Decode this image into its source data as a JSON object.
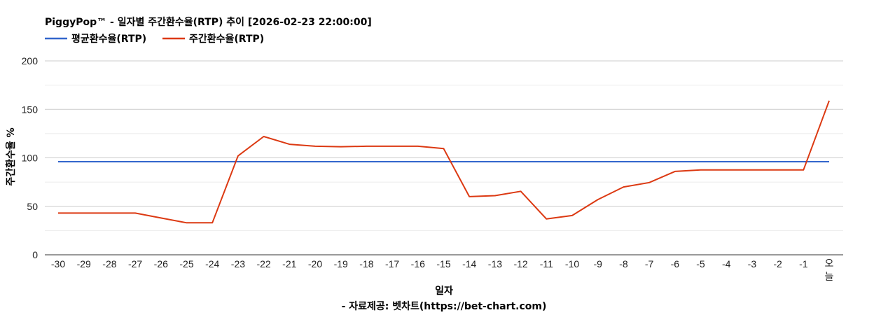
{
  "chart_data": {
    "type": "line",
    "title": "PiggyPop™ - 일자별 주간환수율(RTP) 추이 [2026-02-23 22:00:00]",
    "xlabel": "일자",
    "ylabel": "주간환수율 %",
    "source": "- 자료제공: 벳차트(https://bet-chart.com)",
    "categories": [
      "-30",
      "-29",
      "-28",
      "-27",
      "-26",
      "-25",
      "-24",
      "-23",
      "-22",
      "-21",
      "-20",
      "-19",
      "-18",
      "-17",
      "-16",
      "-15",
      "-14",
      "-13",
      "-12",
      "-11",
      "-10",
      "-9",
      "-8",
      "-7",
      "-6",
      "-5",
      "-4",
      "-3",
      "-2",
      "-1",
      "오늘"
    ],
    "ylim": [
      0,
      200
    ],
    "yticks": [
      0,
      50,
      100,
      150,
      200
    ],
    "grid": true,
    "legend_position": "top-left",
    "series": [
      {
        "name": "평균환수율(RTP)",
        "color": "#3366cc",
        "values": [
          96,
          96,
          96,
          96,
          96,
          96,
          96,
          96,
          96,
          96,
          96,
          96,
          96,
          96,
          96,
          96,
          96,
          96,
          96,
          96,
          96,
          96,
          96,
          96,
          96,
          96,
          96,
          96,
          96,
          96,
          96
        ]
      },
      {
        "name": "주간환수율(RTP)",
        "color": "#dc3912",
        "values": [
          43,
          43,
          43,
          43,
          38,
          33,
          33,
          102,
          122,
          114,
          112,
          111.5,
          112,
          112,
          112,
          109.5,
          60,
          61,
          65.5,
          37,
          40.5,
          57,
          70,
          74.5,
          86,
          87.5,
          87.5,
          87.5,
          87.5,
          87.5,
          159
        ]
      }
    ]
  }
}
